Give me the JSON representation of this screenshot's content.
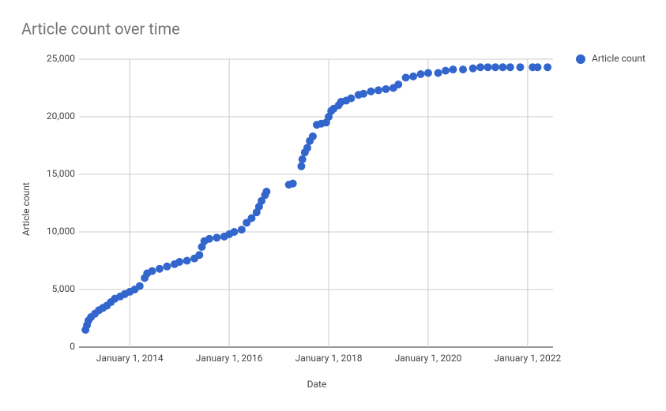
{
  "chart_data": {
    "type": "scatter",
    "title": "Article count over time",
    "x_label": "Date",
    "y_label": "Article count",
    "legend": "right",
    "grid": true,
    "xlim": [
      2012.98,
      2022.51
    ],
    "xticks": [
      {
        "value": 2014,
        "label": "January 1, 2014"
      },
      {
        "value": 2016,
        "label": "January 1, 2016"
      },
      {
        "value": 2018,
        "label": "January 1, 2018"
      },
      {
        "value": 2020,
        "label": "January 1, 2020"
      },
      {
        "value": 2022,
        "label": "January 1, 2022"
      }
    ],
    "ylim": [
      0,
      25000
    ],
    "yticks": [
      0,
      {
        "value": 5000,
        "label": "5,000"
      },
      {
        "value": 10000,
        "label": "10,000"
      },
      {
        "value": 15000,
        "label": "15,000"
      },
      {
        "value": 20000,
        "label": "20,000"
      },
      {
        "value": 25000,
        "label": "25,000"
      }
    ],
    "series": [
      {
        "name": "Article count",
        "color": "#3366cc",
        "x": [
          2013.11,
          2013.14,
          2013.17,
          2013.22,
          2013.3,
          2013.38,
          2013.46,
          2013.54,
          2013.62,
          2013.7,
          2013.81,
          2013.9,
          2014.0,
          2014.1,
          2014.2,
          2014.3,
          2014.35,
          2014.45,
          2014.6,
          2014.75,
          2014.9,
          2015.0,
          2015.15,
          2015.3,
          2015.4,
          2015.45,
          2015.5,
          2015.6,
          2015.75,
          2015.9,
          2016.0,
          2016.1,
          2016.25,
          2016.35,
          2016.45,
          2016.55,
          2016.6,
          2016.65,
          2016.72,
          2016.75,
          2017.2,
          2017.28,
          2017.45,
          2017.47,
          2017.52,
          2017.57,
          2017.62,
          2017.68,
          2017.76,
          2017.85,
          2017.95,
          2018.0,
          2018.05,
          2018.1,
          2018.2,
          2018.25,
          2018.35,
          2018.45,
          2018.6,
          2018.7,
          2018.85,
          2019.0,
          2019.15,
          2019.3,
          2019.4,
          2019.55,
          2019.7,
          2019.85,
          2020.0,
          2020.2,
          2020.35,
          2020.5,
          2020.7,
          2020.9,
          2021.05,
          2021.2,
          2021.35,
          2021.5,
          2021.65,
          2021.85,
          2022.1,
          2022.2,
          2022.4
        ],
        "values": [
          1500,
          1900,
          2300,
          2600,
          2900,
          3200,
          3400,
          3600,
          3900,
          4200,
          4400,
          4600,
          4800,
          5000,
          5300,
          6000,
          6400,
          6600,
          6800,
          7000,
          7200,
          7400,
          7500,
          7700,
          8000,
          8700,
          9200,
          9400,
          9500,
          9600,
          9800,
          10000,
          10200,
          10800,
          11200,
          11700,
          12200,
          12700,
          13200,
          13500,
          14100,
          14200,
          15700,
          16300,
          16900,
          17300,
          17900,
          18300,
          19300,
          19400,
          19500,
          20000,
          20500,
          20700,
          21000,
          21300,
          21400,
          21600,
          21900,
          22000,
          22200,
          22300,
          22400,
          22500,
          22800,
          23400,
          23500,
          23700,
          23800,
          23800,
          24000,
          24100,
          24100,
          24200,
          24300,
          24300,
          24300,
          24300,
          24300,
          24300,
          24300,
          24300,
          24300
        ]
      }
    ]
  }
}
